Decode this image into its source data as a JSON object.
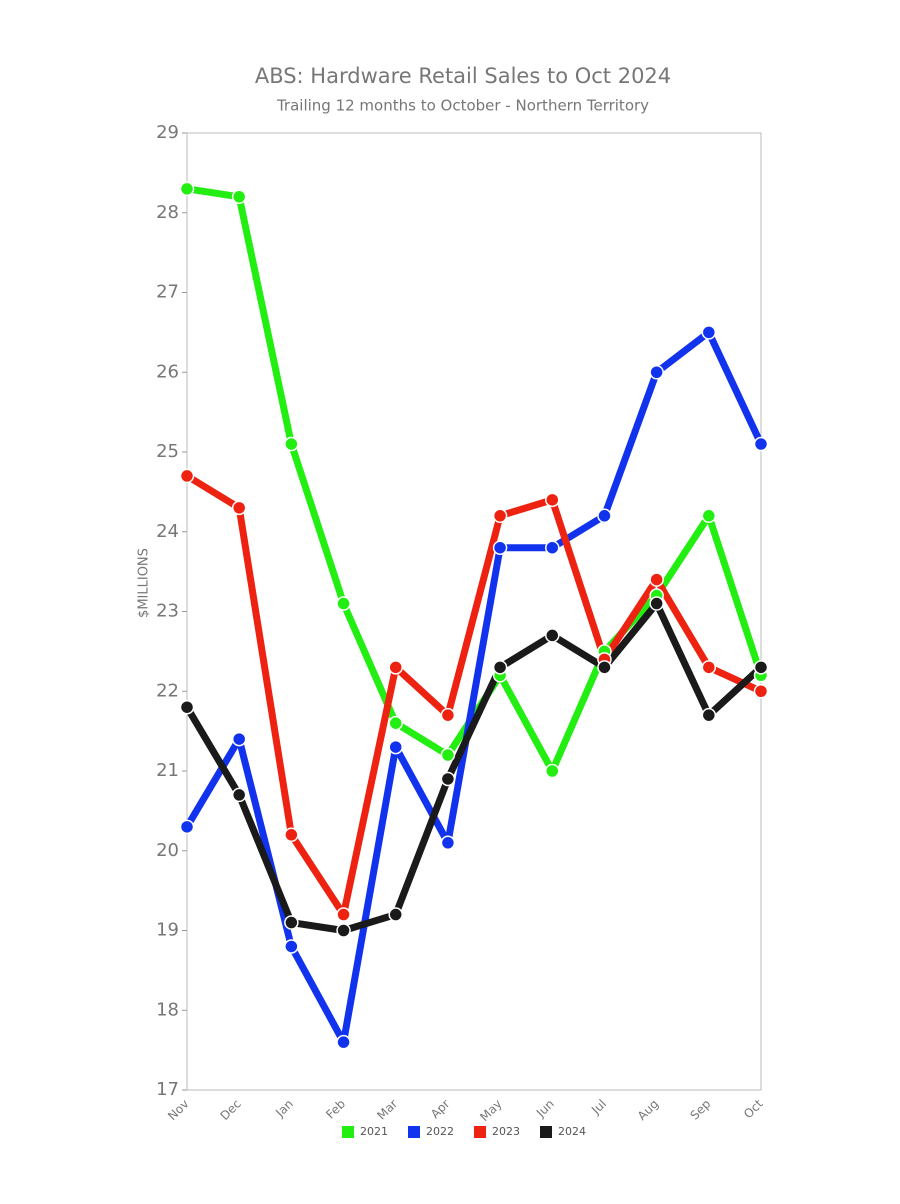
{
  "chart_data": {
    "type": "line",
    "title": "ABS: Hardware Retail Sales to Oct 2024",
    "subtitle": "Trailing 12 months to October - Northern Territory",
    "y_label": "$MILLIONS",
    "categories": [
      "Nov",
      "Dec",
      "Jan",
      "Feb",
      "Mar",
      "Apr",
      "May",
      "Jun",
      "Jul",
      "Aug",
      "Sep",
      "Oct"
    ],
    "series": [
      {
        "name": "2021",
        "color": "#22ee11",
        "values": [
          28.3,
          28.2,
          25.1,
          23.1,
          21.6,
          21.2,
          22.2,
          21.0,
          22.5,
          23.2,
          24.2,
          22.2
        ]
      },
      {
        "name": "2022",
        "color": "#1133ee",
        "values": [
          20.3,
          21.4,
          18.8,
          17.6,
          21.3,
          20.1,
          23.8,
          23.8,
          24.2,
          26.0,
          26.5,
          25.1
        ]
      },
      {
        "name": "2023",
        "color": "#ee2211",
        "values": [
          24.7,
          24.3,
          20.2,
          19.2,
          22.3,
          21.7,
          24.2,
          24.4,
          22.4,
          23.4,
          22.3,
          22.0
        ]
      },
      {
        "name": "2024",
        "color": "#1a1a1a",
        "values": [
          21.8,
          20.7,
          19.1,
          19.0,
          19.2,
          20.9,
          22.3,
          22.7,
          22.3,
          23.1,
          21.7,
          22.3
        ]
      }
    ],
    "ylim": [
      17,
      29
    ],
    "yticks": [
      17,
      18,
      19,
      20,
      21,
      22,
      23,
      24,
      25,
      26,
      27,
      28,
      29
    ],
    "grid": false,
    "legend": "bottom"
  }
}
